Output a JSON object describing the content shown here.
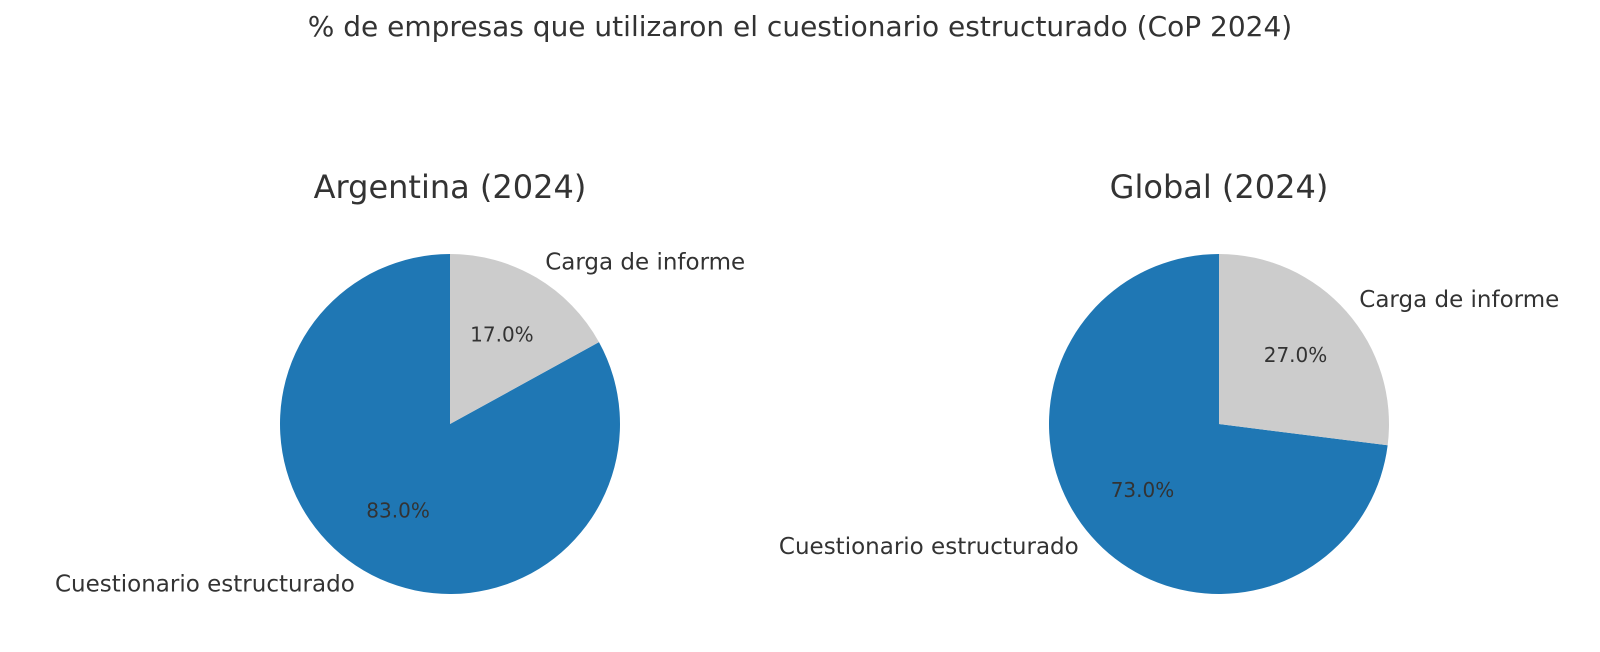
{
  "figure": {
    "title": "% de empresas que utilizaron el cuestionario estructurado (CoP 2024)"
  },
  "chart_data": [
    {
      "type": "pie",
      "title": "Argentina (2024)",
      "categories": [
        "Cuestionario estructurado",
        "Carga de informe"
      ],
      "values": [
        83.0,
        17.0
      ],
      "value_labels": [
        "83.0%",
        "17.0%"
      ],
      "colors": [
        "#1f77b4",
        "#cccccc"
      ],
      "start_angle_deg": 90,
      "direction": "counterclockwise"
    },
    {
      "type": "pie",
      "title": "Global (2024)",
      "categories": [
        "Cuestionario estructurado",
        "Carga de informe"
      ],
      "values": [
        73.0,
        27.0
      ],
      "value_labels": [
        "73.0%",
        "27.0%"
      ],
      "colors": [
        "#1f77b4",
        "#cccccc"
      ],
      "start_angle_deg": 90,
      "direction": "counterclockwise"
    }
  ]
}
